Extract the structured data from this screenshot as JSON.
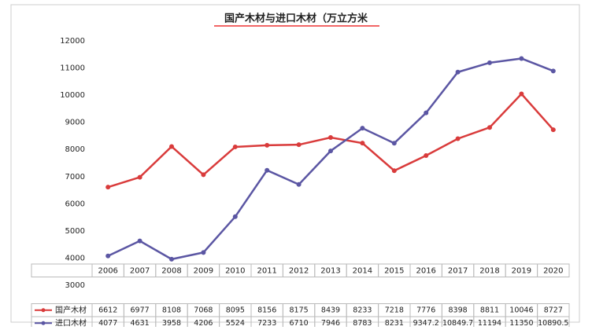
{
  "chart_data": {
    "type": "line",
    "title": "国产木材与进口木材（万立方米",
    "categories": [
      "2006",
      "2007",
      "2008",
      "2009",
      "2010",
      "2011",
      "2012",
      "2013",
      "2014",
      "2015",
      "2016",
      "2017",
      "2018",
      "2019",
      "2020"
    ],
    "series": [
      {
        "name": "国产木材",
        "color": "#d93b3b",
        "values": [
          6612,
          6977,
          8108,
          7068,
          8095,
          8156,
          8175,
          8439,
          8233,
          7218,
          7776,
          8398,
          8811,
          10046,
          8727
        ]
      },
      {
        "name": "进口木材",
        "color": "#5b56a3",
        "values": [
          4077,
          4631,
          3958,
          4206,
          5524,
          7233,
          6710,
          7946,
          8783,
          8231,
          9347.2,
          10849.7,
          11194,
          11350,
          10890.5
        ]
      }
    ],
    "ylim": [
      3000,
      12000
    ],
    "yticks": [
      3000,
      4000,
      5000,
      6000,
      7000,
      8000,
      9000,
      10000,
      11000,
      12000
    ],
    "grid": false
  }
}
